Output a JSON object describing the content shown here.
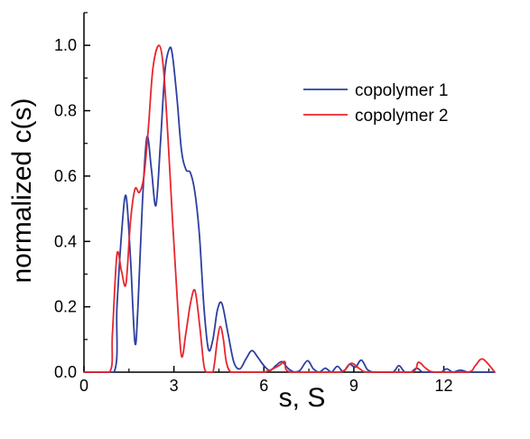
{
  "colors": {
    "series1": "#2e3f9e",
    "series2": "#e8262d",
    "axis": "#000000"
  },
  "chart_data": {
    "type": "line",
    "xlabel": "s, S",
    "ylabel": "normalized c(s)",
    "xlim": [
      0,
      13.7
    ],
    "ylim": [
      0,
      1.1
    ],
    "x_ticks": [
      0,
      3,
      6,
      9,
      12
    ],
    "y_ticks": [
      0.0,
      0.2,
      0.4,
      0.6,
      0.8,
      1.0
    ],
    "x_tick_labels": [
      "0",
      "3",
      "6",
      "9",
      "12"
    ],
    "y_tick_labels": [
      "0.0",
      "0.2",
      "0.4",
      "0.6",
      "0.8",
      "1.0"
    ],
    "legend_position": "top-right",
    "grid": false,
    "series": [
      {
        "name": "copolymer 1",
        "color": "#2e3f9e",
        "x": [
          0,
          1.0,
          1.1,
          1.25,
          1.4,
          1.55,
          1.7,
          1.8,
          1.95,
          2.1,
          2.25,
          2.4,
          2.55,
          2.7,
          2.85,
          2.95,
          3.1,
          3.25,
          3.4,
          3.55,
          3.7,
          3.85,
          4.0,
          4.15,
          4.3,
          4.45,
          4.6,
          4.8,
          5.0,
          5.2,
          5.4,
          5.6,
          5.8,
          6.0,
          6.2,
          6.4,
          6.6,
          6.8,
          7.0,
          7.2,
          7.45,
          7.65,
          7.85,
          8.05,
          8.25,
          8.45,
          8.65,
          8.85,
          9.05,
          9.25,
          9.45,
          9.65,
          9.85,
          10.3,
          10.5,
          10.7,
          10.9,
          11.1,
          11.3,
          11.6,
          11.9,
          12.1,
          12.3,
          12.55,
          12.8,
          13.0,
          13.7
        ],
        "y": [
          0,
          0,
          0.2,
          0.42,
          0.54,
          0.35,
          0.09,
          0.2,
          0.52,
          0.72,
          0.62,
          0.51,
          0.7,
          0.92,
          0.99,
          0.97,
          0.84,
          0.68,
          0.62,
          0.61,
          0.55,
          0.42,
          0.2,
          0.07,
          0.1,
          0.19,
          0.21,
          0.12,
          0.03,
          0.01,
          0.04,
          0.066,
          0.045,
          0.02,
          0.005,
          0.02,
          0.032,
          0.012,
          0.001,
          0.005,
          0.035,
          0.01,
          0.0,
          0.012,
          0.0,
          0.018,
          0.002,
          0.024,
          0.015,
          0.037,
          0.008,
          0.0,
          0.0,
          0.0,
          0.02,
          0.0,
          0.0,
          0.012,
          0.0,
          0.0,
          0.0,
          0.01,
          0.0,
          0.006,
          0.0,
          0.0,
          0.0
        ]
      },
      {
        "name": "copolymer 2",
        "color": "#e8262d",
        "x": [
          0,
          0.85,
          0.95,
          1.1,
          1.25,
          1.4,
          1.55,
          1.7,
          1.85,
          2.0,
          2.15,
          2.3,
          2.5,
          2.65,
          2.8,
          2.95,
          3.1,
          3.25,
          3.4,
          3.55,
          3.7,
          3.85,
          4.0,
          4.1,
          4.3,
          4.45,
          4.55,
          4.65,
          4.75,
          4.9,
          5.2,
          6.0,
          6.5,
          6.7,
          6.9,
          8.5,
          8.9,
          9.2,
          9.5,
          10.9,
          11.15,
          11.4,
          11.7,
          12.8,
          13.05,
          13.3,
          13.7
        ],
        "y": [
          0,
          0,
          0.12,
          0.36,
          0.31,
          0.27,
          0.46,
          0.56,
          0.55,
          0.6,
          0.75,
          0.93,
          1.0,
          0.93,
          0.72,
          0.47,
          0.24,
          0.05,
          0.12,
          0.21,
          0.25,
          0.15,
          0.02,
          0.0,
          0.0,
          0.1,
          0.14,
          0.1,
          0.03,
          0.0,
          0.0,
          0.0,
          0.02,
          0.032,
          0.0,
          0.0,
          0.027,
          0.01,
          0.0,
          0.0,
          0.03,
          0.012,
          0.0,
          0.0,
          0.02,
          0.04,
          0.0
        ]
      }
    ]
  }
}
